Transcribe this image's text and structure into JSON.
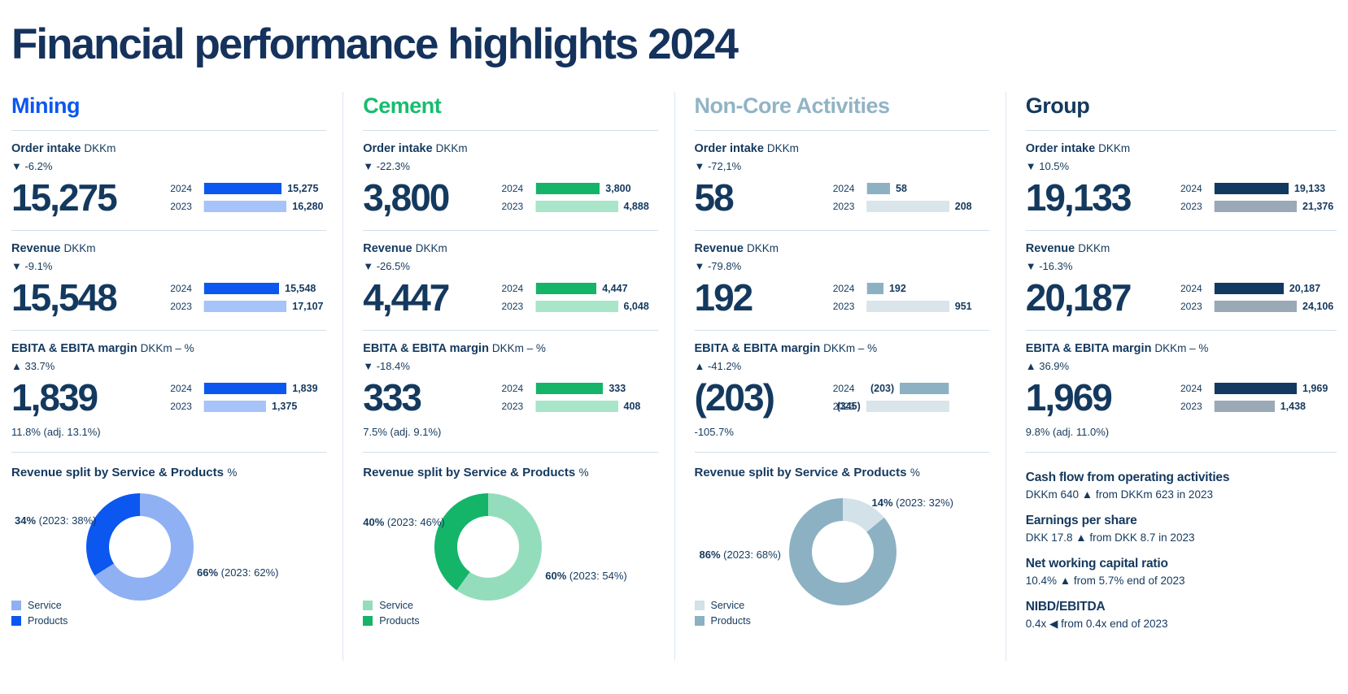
{
  "page": {
    "title": "Financial performance highlights 2024"
  },
  "legend": {
    "service": "Service",
    "products": "Products"
  },
  "columns": [
    {
      "name": "Mining",
      "accent": "#0b57f0",
      "accent_light": "#a6c3fa",
      "metrics": [
        {
          "label": "Order intake",
          "unit": "DKKm",
          "delta": "▼ -6.2%",
          "big": "15,275",
          "bars": [
            {
              "year": "2024",
              "value": "15,275",
              "pct": 94
            },
            {
              "year": "2023",
              "value": "16,280",
              "pct": 100
            }
          ]
        },
        {
          "label": "Revenue",
          "unit": "DKKm",
          "delta": "▼ -9.1%",
          "big": "15,548",
          "bars": [
            {
              "year": "2024",
              "value": "15,548",
              "pct": 91
            },
            {
              "year": "2023",
              "value": "17,107",
              "pct": 100
            }
          ]
        },
        {
          "label": "EBITA & EBITA margin",
          "unit": "DKKm – %",
          "delta": "▲ 33.7%",
          "big": "1,839",
          "note": "11.8% (adj. 13.1%)",
          "bars": [
            {
              "year": "2024",
              "value": "1,839",
              "pct": 100
            },
            {
              "year": "2023",
              "value": "1,375",
              "pct": 75
            }
          ]
        }
      ],
      "split": {
        "heading": "Revenue split by Service & Products",
        "unit": "%",
        "service_pct": 66,
        "products_pct": 34,
        "service_color": "#8fb0f3",
        "products_color": "#0b57f0",
        "labels": [
          {
            "pct": "34%",
            "rest": " (2023: 38%)"
          },
          {
            "pct": "66%",
            "rest": " (2023: 62%)"
          }
        ]
      }
    },
    {
      "name": "Cement",
      "accent": "#14b469",
      "accent_light": "#a9e5c9",
      "metrics": [
        {
          "label": "Order intake",
          "unit": "DKKm",
          "delta": "▼ -22.3%",
          "big": "3,800",
          "bars": [
            {
              "year": "2024",
              "value": "3,800",
              "pct": 78
            },
            {
              "year": "2023",
              "value": "4,888",
              "pct": 100
            }
          ]
        },
        {
          "label": "Revenue",
          "unit": "DKKm",
          "delta": "▼ -26.5%",
          "big": "4,447",
          "bars": [
            {
              "year": "2024",
              "value": "4,447",
              "pct": 74
            },
            {
              "year": "2023",
              "value": "6,048",
              "pct": 100
            }
          ]
        },
        {
          "label": "EBITA & EBITA margin",
          "unit": "DKKm – %",
          "delta": "▼ -18.4%",
          "big": "333",
          "note": "7.5% (adj. 9.1%)",
          "bars": [
            {
              "year": "2024",
              "value": "333",
              "pct": 82
            },
            {
              "year": "2023",
              "value": "408",
              "pct": 100
            }
          ]
        }
      ],
      "split": {
        "heading": "Revenue split by Service & Products",
        "unit": "%",
        "service_pct": 60,
        "products_pct": 40,
        "service_color": "#93ddbc",
        "products_color": "#14b469",
        "labels": [
          {
            "pct": "40%",
            "rest": " (2023: 46%)"
          },
          {
            "pct": "60%",
            "rest": " (2023: 54%)"
          }
        ]
      }
    },
    {
      "name": "Non-Core Activities",
      "accent": "#8cb1c2",
      "accent_light": "#d9e5ea",
      "metrics": [
        {
          "label": "Order intake",
          "unit": "DKKm",
          "delta": "▼ -72,1%",
          "big": "58",
          "bars": [
            {
              "year": "2024",
              "value": "58",
              "pct": 28
            },
            {
              "year": "2023",
              "value": "208",
              "pct": 100
            }
          ]
        },
        {
          "label": "Revenue",
          "unit": "DKKm",
          "delta": "▼ -79.8%",
          "big": "192",
          "bars": [
            {
              "year": "2024",
              "value": "192",
              "pct": 20
            },
            {
              "year": "2023",
              "value": "951",
              "pct": 100
            }
          ]
        },
        {
          "label": "EBITA & EBITA margin",
          "unit": "DKKm – %",
          "delta": "▲ -41.2%",
          "big": "(203)",
          "note": "-105.7%",
          "negative": true,
          "bars": [
            {
              "year": "2024",
              "value": "(203)",
              "pct": 59
            },
            {
              "year": "2023",
              "value": "(345)",
              "pct": 100
            }
          ]
        }
      ],
      "split": {
        "heading": "Revenue split by Service & Products",
        "unit": "%",
        "service_pct": 14,
        "products_pct": 86,
        "service_color": "#d3e1e8",
        "products_color": "#8cb1c2",
        "labels": [
          {
            "pct": "14%",
            "rest": " (2023: 32%)"
          },
          {
            "pct": "86%",
            "rest": " (2023: 68%)"
          }
        ]
      }
    },
    {
      "name": "Group",
      "accent": "#12395f",
      "accent_light": "#9ba8b6",
      "metrics": [
        {
          "label": "Order intake",
          "unit": "DKKm",
          "delta": "▼ 10.5%",
          "big": "19,133",
          "bars": [
            {
              "year": "2024",
              "value": "19,133",
              "pct": 90
            },
            {
              "year": "2023",
              "value": "21,376",
              "pct": 100
            }
          ]
        },
        {
          "label": "Revenue",
          "unit": "DKKm",
          "delta": "▼ -16.3%",
          "big": "20,187",
          "bars": [
            {
              "year": "2024",
              "value": "20,187",
              "pct": 84
            },
            {
              "year": "2023",
              "value": "24,106",
              "pct": 100
            }
          ]
        },
        {
          "label": "EBITA & EBITA margin",
          "unit": "DKKm – %",
          "delta": "▲ 36.9%",
          "big": "1,969",
          "note": "9.8% (adj. 11.0%)",
          "bars": [
            {
              "year": "2024",
              "value": "1,969",
              "pct": 100
            },
            {
              "year": "2023",
              "value": "1,438",
              "pct": 73
            }
          ]
        }
      ],
      "kpis": [
        {
          "heading": "Cash flow from operating activities",
          "value": "DKKm 640 ▲ from DKKm 623 in 2023"
        },
        {
          "heading": "Earnings per share",
          "value": "DKK 17.8 ▲ from DKK 8.7 in 2023"
        },
        {
          "heading": "Net working capital ratio",
          "value": "10.4% ▲ from 5.7% end of 2023"
        },
        {
          "heading": "NIBD/EBITDA",
          "value": "0.4x ◀ from 0.4x end of 2023"
        }
      ]
    }
  ],
  "chart_data": [
    {
      "type": "bar",
      "title": "Mining — Order intake (DKKm)",
      "categories": [
        "2024",
        "2023"
      ],
      "values": [
        15275,
        16280
      ]
    },
    {
      "type": "bar",
      "title": "Mining — Revenue (DKKm)",
      "categories": [
        "2024",
        "2023"
      ],
      "values": [
        15548,
        17107
      ]
    },
    {
      "type": "bar",
      "title": "Mining — EBITA (DKKm)",
      "categories": [
        "2024",
        "2023"
      ],
      "values": [
        1839,
        1375
      ]
    },
    {
      "type": "pie",
      "title": "Mining — Revenue split (%)",
      "labels": [
        "Service",
        "Products"
      ],
      "values": [
        66,
        34
      ],
      "values_2023": [
        62,
        38
      ]
    },
    {
      "type": "bar",
      "title": "Cement — Order intake (DKKm)",
      "categories": [
        "2024",
        "2023"
      ],
      "values": [
        3800,
        4888
      ]
    },
    {
      "type": "bar",
      "title": "Cement — Revenue (DKKm)",
      "categories": [
        "2024",
        "2023"
      ],
      "values": [
        4447,
        6048
      ]
    },
    {
      "type": "bar",
      "title": "Cement — EBITA (DKKm)",
      "categories": [
        "2024",
        "2023"
      ],
      "values": [
        333,
        408
      ]
    },
    {
      "type": "pie",
      "title": "Cement — Revenue split (%)",
      "labels": [
        "Service",
        "Products"
      ],
      "values": [
        60,
        40
      ],
      "values_2023": [
        54,
        46
      ]
    },
    {
      "type": "bar",
      "title": "Non-Core Activities — Order intake (DKKm)",
      "categories": [
        "2024",
        "2023"
      ],
      "values": [
        58,
        208
      ]
    },
    {
      "type": "bar",
      "title": "Non-Core Activities — Revenue (DKKm)",
      "categories": [
        "2024",
        "2023"
      ],
      "values": [
        192,
        951
      ]
    },
    {
      "type": "bar",
      "title": "Non-Core Activities — EBITA (DKKm)",
      "categories": [
        "2024",
        "2023"
      ],
      "values": [
        -203,
        -345
      ]
    },
    {
      "type": "pie",
      "title": "Non-Core Activities — Revenue split (%)",
      "labels": [
        "Service",
        "Products"
      ],
      "values": [
        14,
        86
      ],
      "values_2023": [
        32,
        68
      ]
    },
    {
      "type": "bar",
      "title": "Group — Order intake (DKKm)",
      "categories": [
        "2024",
        "2023"
      ],
      "values": [
        19133,
        21376
      ]
    },
    {
      "type": "bar",
      "title": "Group — Revenue (DKKm)",
      "categories": [
        "2024",
        "2023"
      ],
      "values": [
        20187,
        24106
      ]
    },
    {
      "type": "bar",
      "title": "Group — EBITA (DKKm)",
      "categories": [
        "2024",
        "2023"
      ],
      "values": [
        1969,
        1438
      ]
    }
  ]
}
